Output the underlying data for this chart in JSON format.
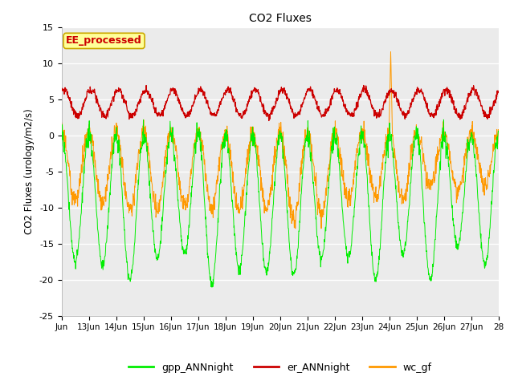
{
  "title": "CO2 Fluxes",
  "ylabel": "CO2 Fluxes (urology/m2/s)",
  "ylim": [
    -25,
    15
  ],
  "yticks": [
    -25,
    -20,
    -15,
    -10,
    -5,
    0,
    5,
    10,
    15
  ],
  "xtick_labels": [
    "Jun",
    "13Jun",
    "14Jun",
    "15Jun",
    "16Jun",
    "17Jun",
    "18Jun",
    "19Jun",
    "20Jun",
    "21Jun",
    "22Jun",
    "23Jun",
    "24Jun",
    "25Jun",
    "26Jun",
    "27Jun",
    "28"
  ],
  "color_gpp": "#00ee00",
  "color_er": "#cc0000",
  "color_wc": "#ff9900",
  "bg_color": "#ebebeb",
  "annotation_text": "EE_processed",
  "annotation_bg": "#ffff99",
  "annotation_border": "#ccaa00",
  "legend_labels": [
    "gpp_ANNnight",
    "er_ANNnight",
    "wc_gf"
  ],
  "n_days": 16,
  "points_per_day": 96,
  "gpp_day_depths": [
    17.5,
    18.0,
    20.0,
    17.0,
    16.5,
    20.5,
    18.5,
    19.0,
    19.5,
    17.0,
    17.0,
    20.0,
    16.5,
    20.0,
    15.5,
    18.0
  ],
  "wc_day_depths": [
    9.5,
    10.0,
    11.0,
    11.0,
    10.5,
    10.5,
    11.0,
    10.5,
    12.5,
    11.5,
    9.5,
    9.0,
    9.5,
    9.0,
    10.0,
    9.0
  ],
  "wc_spike_day": 12,
  "wc_spike_value": 11.7
}
